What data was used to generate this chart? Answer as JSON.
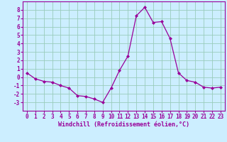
{
  "x": [
    0,
    1,
    2,
    3,
    4,
    5,
    6,
    7,
    8,
    9,
    10,
    11,
    12,
    13,
    14,
    15,
    16,
    17,
    18,
    19,
    20,
    21,
    22,
    23
  ],
  "y": [
    0.5,
    -0.2,
    -0.5,
    -0.6,
    -1.0,
    -1.3,
    -2.2,
    -2.3,
    -2.6,
    -3.0,
    -1.3,
    0.8,
    2.5,
    7.3,
    8.3,
    6.5,
    6.6,
    4.6,
    0.5,
    -0.4,
    -0.6,
    -1.2,
    -1.3,
    -1.2
  ],
  "line_color": "#990099",
  "marker": "D",
  "marker_size": 2.0,
  "bg_color": "#cceeff",
  "grid_color": "#99ccbb",
  "xlabel": "Windchill (Refroidissement éolien,°C)",
  "xlabel_color": "#990099",
  "tick_color": "#990099",
  "axis_color": "#990099",
  "ylim": [
    -4,
    9
  ],
  "xlim": [
    -0.5,
    23.5
  ],
  "yticks": [
    -3,
    -2,
    -1,
    0,
    1,
    2,
    3,
    4,
    5,
    6,
    7,
    8
  ],
  "xticks": [
    0,
    1,
    2,
    3,
    4,
    5,
    6,
    7,
    8,
    9,
    10,
    11,
    12,
    13,
    14,
    15,
    16,
    17,
    18,
    19,
    20,
    21,
    22,
    23
  ],
  "tick_fontsize": 5.5,
  "xlabel_fontsize": 6.0
}
